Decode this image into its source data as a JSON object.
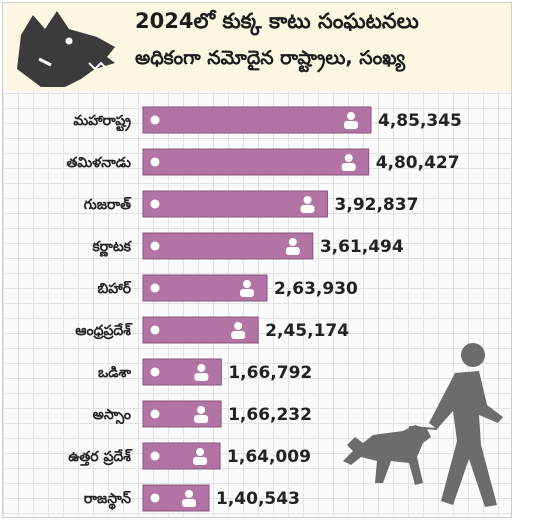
{
  "title_lines": [
    "2024లో కుక్క కాటు సంఘటనలు",
    "అధికంగా నమోదైన రాష్ట్రాలు, సంఖ్య"
  ],
  "colors": {
    "bar": "#b274a4",
    "bar_edge": "#8a5580",
    "header_bg": "#fbf7e3",
    "icon": "#ffffff",
    "illustration": "#6c6c6c"
  },
  "illustrations": [
    "dog-head-icon",
    "man-walking-dog-icon"
  ],
  "chart_data": {
    "type": "bar",
    "orientation": "horizontal",
    "title": "2024లో కుక్క కాటు సంఘటనలు అధికంగా నమోదైన రాష్ట్రాలు, సంఖ్య",
    "categories": [
      "మహారాష్ట్ర",
      "తమిళనాడు",
      "గుజరాత్",
      "కర్ణాటక",
      "బిహార్",
      "ఆంధ్రప్రదేశ్",
      "ఒడిశా",
      "అస్సాం",
      "ఉత్తర ప్రదేశ్",
      "రాజస్థాన్"
    ],
    "values": [
      485345,
      480427,
      392837,
      361494,
      263930,
      245174,
      166792,
      166232,
      164009,
      140543
    ],
    "value_labels": [
      "4,85,345",
      "4,80,427",
      "3,92,837",
      "3,61,494",
      "2,63,930",
      "2,45,174",
      "1,66,792",
      "1,66,232",
      "1,64,009",
      "1,40,543"
    ],
    "xlim": [
      0,
      485345
    ],
    "grid": true
  }
}
